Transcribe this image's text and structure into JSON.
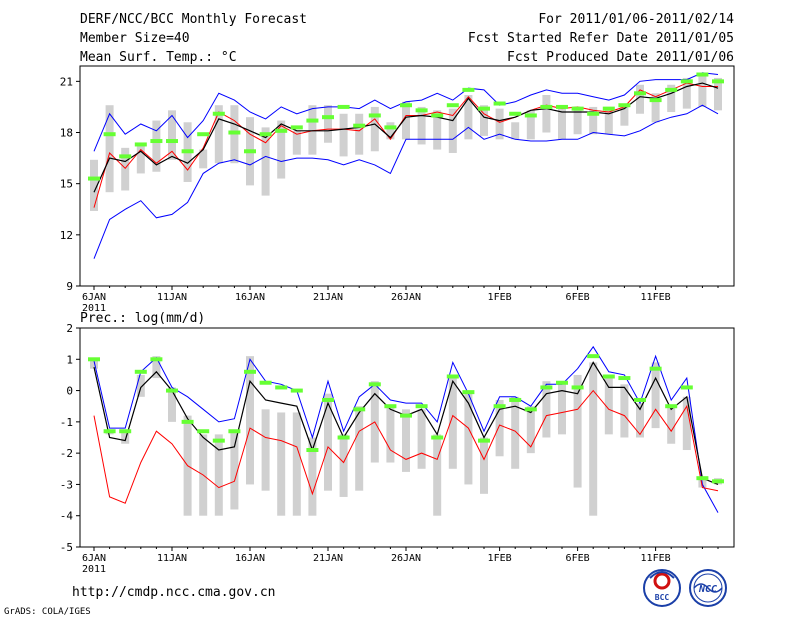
{
  "header": {
    "title": "DERF/NCC/BCC Monthly Forecast",
    "member_size": "Member Size=40",
    "variable": "Mean Surf. Temp.: °C",
    "period": "For 2011/01/06-2011/02/14",
    "started": "Fcst Started Refer Date 2011/01/05",
    "produced": "Fcst Produced Date 2011/01/06"
  },
  "footer": {
    "url": "http://cmdp.ncc.cma.gov.cn",
    "grads": "GrADS: COLA/IGES",
    "logo_bcc": "BCC",
    "logo_ncc": "NCC"
  },
  "colors": {
    "upper": "#0000ff",
    "lower": "#0000ff",
    "mean": "#ff0000",
    "median": "#000000",
    "bar": "#d0d0d0",
    "control": "#66ff33"
  },
  "chart_data": [
    {
      "type": "line",
      "subtitle": "Mean Surf. Temp.: °C",
      "x_tick_labels": [
        "6JAN",
        "11JAN",
        "16JAN",
        "21JAN",
        "26JAN",
        "1FEB",
        "6FEB",
        "11FEB"
      ],
      "x_tick_index": [
        0,
        5,
        10,
        15,
        20,
        26,
        31,
        36
      ],
      "x_year_label": "2011",
      "ylim": [
        9,
        21.9
      ],
      "yticks": [
        9,
        12,
        15,
        18,
        21
      ],
      "series": [
        {
          "name": "max",
          "values": [
            10.6,
            12.9,
            13.5,
            14.0,
            13.0,
            13.2,
            13.9,
            15.6,
            16.2,
            16.4,
            16.1,
            16.6,
            16.3,
            16.5,
            16.5,
            16.4,
            16.1,
            16.4,
            16.1,
            15.6,
            17.6,
            17.6,
            17.6,
            17.6,
            18.3,
            17.6,
            17.9,
            17.6,
            17.5,
            17.5,
            17.6,
            17.6,
            18.0,
            17.9,
            17.8,
            18.1,
            18.6,
            18.9,
            19.1,
            19.6,
            19.1
          ]
        },
        {
          "name": "max",
          "values": [
            16.9,
            19.1,
            17.9,
            18.5,
            18.1,
            19.0,
            17.7,
            18.7,
            20.3,
            19.9,
            19.2,
            18.8,
            19.5,
            19.1,
            19.4,
            19.5,
            19.5,
            19.4,
            19.9,
            19.4,
            19.8,
            19.9,
            20.3,
            19.9,
            20.6,
            20.5,
            19.6,
            19.8,
            20.2,
            20.5,
            20.3,
            20.3,
            20.1,
            19.9,
            20.2,
            21.0,
            21.1,
            21.1,
            21.1,
            21.5,
            21.4
          ]
        },
        {
          "name": "mean",
          "values": [
            13.6,
            16.8,
            15.9,
            17.0,
            16.2,
            16.9,
            15.8,
            17.1,
            19.2,
            18.7,
            17.9,
            17.4,
            18.4,
            17.9,
            18.1,
            18.2,
            18.2,
            18.1,
            18.8,
            17.6,
            19.0,
            19.0,
            19.2,
            19.0,
            20.1,
            19.1,
            18.6,
            18.9,
            19.3,
            19.6,
            19.4,
            19.5,
            19.3,
            19.2,
            19.5,
            20.5,
            20.1,
            20.5,
            20.9,
            20.7,
            20.7
          ]
        },
        {
          "name": "median",
          "values": [
            14.5,
            16.5,
            16.3,
            16.9,
            16.1,
            16.6,
            16.2,
            17.0,
            18.8,
            18.5,
            18.1,
            17.7,
            18.5,
            18.1,
            18.1,
            18.1,
            18.2,
            18.3,
            18.5,
            17.7,
            18.9,
            19.0,
            18.9,
            18.7,
            20.0,
            18.9,
            18.7,
            18.9,
            19.3,
            19.4,
            19.2,
            19.2,
            19.2,
            19.1,
            19.4,
            20.1,
            20.0,
            20.3,
            20.7,
            20.9,
            20.6
          ]
        },
        {
          "name": "control",
          "values": [
            15.3,
            17.9,
            16.6,
            17.3,
            17.5,
            17.5,
            16.9,
            17.9,
            19.1,
            18.0,
            16.9,
            17.9,
            18.1,
            18.3,
            18.7,
            18.9,
            19.5,
            18.4,
            19.0,
            18.3,
            19.6,
            19.3,
            19.0,
            19.6,
            20.5,
            19.4,
            19.7,
            19.1,
            19.0,
            19.5,
            19.5,
            19.4,
            19.1,
            19.4,
            19.6,
            20.3,
            19.9,
            20.5,
            21.0,
            21.4,
            21.0
          ]
        }
      ],
      "boxes": [
        [
          13.4,
          16.4
        ],
        [
          14.5,
          19.6
        ],
        [
          14.6,
          17.1
        ],
        [
          15.6,
          17.4
        ],
        [
          15.7,
          18.7
        ],
        [
          16.4,
          19.3
        ],
        [
          15.1,
          18.6
        ],
        [
          15.9,
          17.0
        ],
        [
          16.2,
          19.6
        ],
        [
          16.2,
          19.6
        ],
        [
          14.9,
          18.9
        ],
        [
          14.3,
          18.3
        ],
        [
          15.3,
          18.7
        ],
        [
          16.7,
          18.1
        ],
        [
          16.7,
          19.6
        ],
        [
          17.4,
          19.6
        ],
        [
          16.6,
          19.1
        ],
        [
          16.7,
          19.1
        ],
        [
          16.9,
          19.5
        ],
        [
          17.6,
          18.6
        ],
        [
          17.6,
          19.8
        ],
        [
          17.3,
          19.5
        ],
        [
          17.0,
          19.3
        ],
        [
          16.8,
          19.4
        ],
        [
          17.6,
          20.2
        ],
        [
          17.8,
          19.6
        ],
        [
          17.6,
          19.4
        ],
        [
          17.6,
          18.6
        ],
        [
          17.6,
          19.3
        ],
        [
          18.0,
          20.2
        ],
        [
          17.6,
          19.4
        ],
        [
          17.9,
          19.5
        ],
        [
          17.9,
          19.5
        ],
        [
          17.9,
          19.5
        ],
        [
          18.4,
          19.7
        ],
        [
          19.1,
          20.8
        ],
        [
          18.6,
          20.3
        ],
        [
          19.2,
          20.8
        ],
        [
          19.4,
          21.2
        ],
        [
          19.5,
          21.4
        ],
        [
          19.3,
          21.2
        ]
      ]
    },
    {
      "type": "line",
      "subtitle": "Prec.: log(mm/d)",
      "x_tick_labels": [
        "6JAN",
        "11JAN",
        "16JAN",
        "21JAN",
        "26JAN",
        "1FEB",
        "6FEB",
        "11FEB"
      ],
      "x_tick_index": [
        0,
        5,
        10,
        15,
        20,
        26,
        31,
        36
      ],
      "x_year_label": "2011",
      "ylim": [
        -5,
        2
      ],
      "yticks": [
        -5,
        -4,
        -3,
        -2,
        -1,
        0,
        1,
        2
      ],
      "series": [
        {
          "name": "max",
          "values": [
            0.95,
            -1.2,
            -1.2,
            0.6,
            1.05,
            0.1,
            -0.2,
            -0.6,
            -1.0,
            -0.9,
            1.0,
            0.3,
            0.2,
            0.0,
            -1.5,
            0.3,
            -1.3,
            -0.2,
            0.2,
            -0.3,
            -0.4,
            -0.4,
            -1.0,
            0.9,
            -0.1,
            -1.3,
            -0.2,
            -0.2,
            -0.5,
            0.2,
            0.2,
            0.7,
            1.4,
            0.6,
            0.5,
            -0.4,
            1.1,
            -0.3,
            0.4,
            -3.0,
            -3.9
          ]
        },
        {
          "name": "mean",
          "values": [
            -0.8,
            -3.4,
            -3.6,
            -2.3,
            -1.3,
            -1.7,
            -2.4,
            -2.7,
            -3.1,
            -2.9,
            -1.2,
            -1.5,
            -1.6,
            -1.8,
            -3.3,
            -1.8,
            -2.3,
            -1.3,
            -1.0,
            -1.9,
            -2.2,
            -2.0,
            -2.2,
            -0.8,
            -1.2,
            -2.2,
            -1.1,
            -1.3,
            -1.8,
            -0.8,
            -0.7,
            -0.6,
            0.0,
            -0.6,
            -0.8,
            -1.4,
            -0.6,
            -1.3,
            -0.5,
            -3.1,
            -3.2
          ]
        },
        {
          "name": "median",
          "values": [
            0.75,
            -1.5,
            -1.6,
            0.1,
            0.6,
            0.0,
            -0.9,
            -1.5,
            -1.9,
            -1.8,
            0.3,
            -0.3,
            -0.4,
            -0.5,
            -1.9,
            -0.4,
            -1.5,
            -0.7,
            -0.1,
            -0.6,
            -0.8,
            -0.6,
            -1.4,
            0.3,
            -0.4,
            -1.5,
            -0.6,
            -0.5,
            -0.7,
            -0.1,
            0.0,
            -0.1,
            0.9,
            0.1,
            0.1,
            -0.6,
            0.4,
            -0.6,
            -0.2,
            -2.8,
            -3.0
          ]
        },
        {
          "name": "control",
          "values": [
            1.0,
            -1.3,
            -1.3,
            0.6,
            1.0,
            0.0,
            -1.0,
            -1.3,
            -1.6,
            -1.3,
            0.6,
            0.25,
            0.1,
            0.0,
            -1.9,
            -0.3,
            -1.5,
            -0.6,
            0.2,
            -0.5,
            -0.8,
            -0.5,
            -1.5,
            0.45,
            -0.05,
            -1.6,
            -0.5,
            -0.3,
            -0.6,
            0.1,
            0.25,
            0.1,
            1.1,
            0.45,
            0.4,
            -0.3,
            0.7,
            -0.5,
            0.1,
            -2.8,
            -2.9
          ]
        }
      ],
      "boxes": [
        [
          0.7,
          0.95
        ],
        [
          -1.4,
          -1.25
        ],
        [
          -1.7,
          -1.3
        ],
        [
          -0.2,
          0.5
        ],
        [
          0.4,
          1.1
        ],
        [
          -1.0,
          0.1
        ],
        [
          -4.0,
          -0.8
        ],
        [
          -4.0,
          -1.4
        ],
        [
          -4.0,
          -1.4
        ],
        [
          -3.8,
          -1.3
        ],
        [
          -3.0,
          1.1
        ],
        [
          -3.2,
          -0.6
        ],
        [
          -4.0,
          -0.7
        ],
        [
          -4.0,
          -0.7
        ],
        [
          -4.0,
          -1.5
        ],
        [
          -3.2,
          -0.1
        ],
        [
          -3.4,
          -1.4
        ],
        [
          -3.2,
          -0.5
        ],
        [
          -2.3,
          0.3
        ],
        [
          -2.3,
          -0.5
        ],
        [
          -2.6,
          -0.6
        ],
        [
          -2.5,
          -0.6
        ],
        [
          -4.0,
          -1.4
        ],
        [
          -2.5,
          0.5
        ],
        [
          -3.0,
          0.0
        ],
        [
          -3.3,
          -1.5
        ],
        [
          -2.1,
          -0.3
        ],
        [
          -2.5,
          -0.2
        ],
        [
          -2.0,
          -0.5
        ],
        [
          -1.5,
          0.3
        ],
        [
          -1.4,
          0.3
        ],
        [
          -3.1,
          0.5
        ],
        [
          -4.0,
          0.9
        ],
        [
          -1.4,
          0.5
        ],
        [
          -1.5,
          0.2
        ],
        [
          -1.5,
          -0.4
        ],
        [
          -1.2,
          0.9
        ],
        [
          -1.7,
          -0.5
        ],
        [
          -1.9,
          -0.2
        ],
        [
          -3.1,
          -2.8
        ],
        [
          -3.0,
          -2.8
        ]
      ]
    }
  ]
}
